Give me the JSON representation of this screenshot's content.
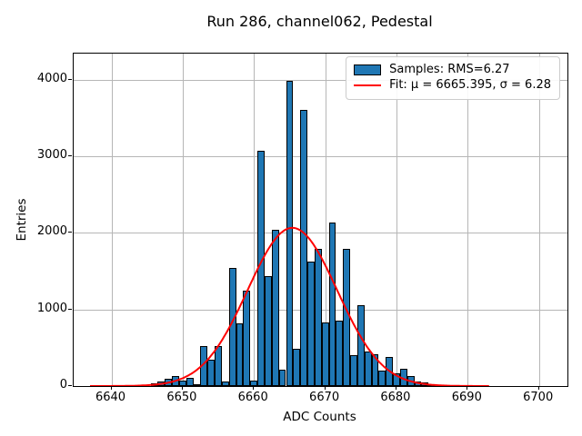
{
  "title": "Run 286, channel062, Pedestal",
  "axes": {
    "xlabel": "ADC Counts",
    "ylabel": "Entries",
    "x_ticks": [
      6640,
      6650,
      6660,
      6670,
      6680,
      6690,
      6700
    ],
    "y_ticks": [
      0,
      1000,
      2000,
      3000,
      4000
    ]
  },
  "legend": {
    "samples_label": "Samples: RMS=6.27",
    "fit_label": "Fit: μ = 6665.395, σ = 6.28"
  },
  "colors": {
    "bar_fill": "#1f77b4",
    "bar_edge": "#000000",
    "fit_line": "#ff0000",
    "grid": "#b6b6b6",
    "background": "#ffffff"
  },
  "chart_data": {
    "type": "bar",
    "subtype": "histogram",
    "title": "Run 286, channel062, Pedestal",
    "xlabel": "ADC Counts",
    "ylabel": "Entries",
    "grid": true,
    "legend_position": "upper right",
    "xlim": [
      6634.7,
      6704.0
    ],
    "ylim": [
      0,
      4340
    ],
    "bin_width": 1,
    "bin_centers": [
      6646,
      6647,
      6648,
      6649,
      6650,
      6651,
      6652,
      6653,
      6654,
      6655,
      6656,
      6657,
      6658,
      6659,
      6660,
      6661,
      6662,
      6663,
      6664,
      6665,
      6666,
      6667,
      6668,
      6669,
      6670,
      6671,
      6672,
      6673,
      6674,
      6675,
      6676,
      6677,
      6678,
      6679,
      6680,
      6681,
      6682,
      6683,
      6684,
      6685
    ],
    "values": [
      30,
      60,
      90,
      130,
      70,
      105,
      20,
      520,
      345,
      520,
      65,
      1540,
      815,
      1250,
      75,
      3070,
      1430,
      2040,
      210,
      3980,
      490,
      3610,
      1620,
      1790,
      830,
      2140,
      850,
      1790,
      400,
      1060,
      450,
      420,
      205,
      385,
      165,
      230,
      125,
      55,
      45,
      25
    ],
    "series_name": "Samples: RMS=6.27",
    "rms": 6.27,
    "fit": {
      "name": "Fit: μ = 6665.395, σ = 6.28",
      "type": "gaussian",
      "mu": 6665.395,
      "sigma": 6.28,
      "amplitude": 2065,
      "x_start": 6637.0,
      "x_end": 6693.0
    }
  }
}
